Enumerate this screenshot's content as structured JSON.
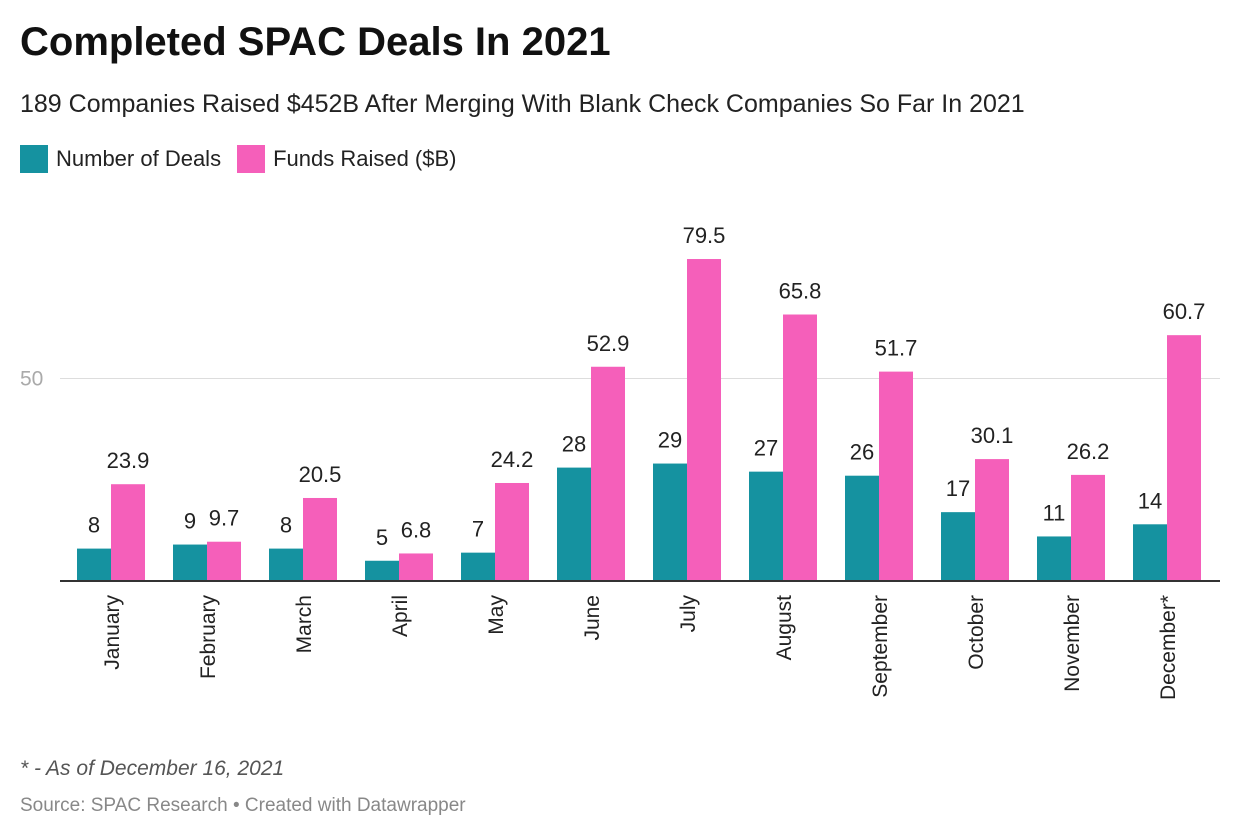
{
  "header": {
    "title": "Completed SPAC Deals In 2021",
    "subtitle": "189 Companies Raised $452B After Merging With Blank Check Companies So Far In 2021"
  },
  "colors": {
    "deals": "#1592a0",
    "funds": "#f55fba",
    "gridline": "#dddddd",
    "axis": "#333333",
    "tick_label": "#aaaaaa"
  },
  "chart_data": {
    "type": "bar",
    "title": "Completed SPAC Deals In 2021",
    "subtitle": "189 Companies Raised $452B After Merging With Blank Check Companies So Far In 2021",
    "xlabel": "",
    "ylabel": "",
    "ylim": [
      0,
      85
    ],
    "yticks": [
      50
    ],
    "grid": true,
    "legend_position": "top-left",
    "categories": [
      "January",
      "February",
      "March",
      "April",
      "May",
      "June",
      "July",
      "August",
      "September",
      "October",
      "November",
      "December*"
    ],
    "series": [
      {
        "name": "Number of Deals",
        "values": [
          8,
          9,
          8,
          5,
          7,
          28,
          29,
          27,
          26,
          17,
          11,
          14
        ],
        "labels": [
          "8",
          "9",
          "8",
          "5",
          "7",
          "28",
          "29",
          "27",
          "26",
          "17",
          "11",
          "14"
        ]
      },
      {
        "name": "Funds Raised ($B)",
        "values": [
          23.9,
          9.7,
          20.5,
          6.8,
          24.2,
          52.9,
          79.5,
          65.8,
          51.7,
          30.1,
          26.2,
          60.7
        ],
        "labels": [
          "23.9",
          "9.7",
          "20.5",
          "6.8",
          "24.2",
          "52.9",
          "79.5",
          "65.8",
          "51.7",
          "30.1",
          "26.2",
          "60.7"
        ]
      }
    ]
  },
  "footer": {
    "note": "* - As of December 16, 2021",
    "source": "Source: SPAC Research • Created with Datawrapper"
  }
}
